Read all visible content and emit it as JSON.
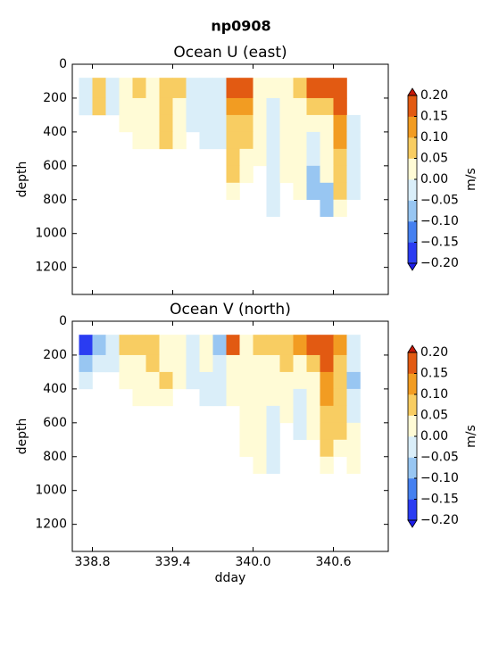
{
  "title": "np0908",
  "chart_data": [
    {
      "type": "heatmap",
      "title": "Ocean U (east)",
      "ylabel": "depth",
      "colorbar_label": "m/s",
      "xlim": [
        338.65,
        341.01
      ],
      "xticks": [
        338.8,
        339.4,
        340,
        340.6
      ],
      "ylim": [
        1360,
        0
      ],
      "yticks": [
        0,
        200,
        400,
        600,
        800,
        1000,
        1200
      ],
      "x_edges": [
        338.7,
        338.8,
        338.9,
        339.0,
        339.1,
        339.2,
        339.3,
        339.4,
        339.5,
        339.6,
        339.7,
        339.8,
        339.9,
        340.0,
        340.1,
        340.2,
        340.3,
        340.4,
        340.5,
        340.6,
        340.7,
        340.8
      ],
      "y_edges": [
        80,
        200,
        300,
        400,
        500,
        600,
        700,
        800,
        900
      ],
      "z": [
        [
          -0.03,
          0.08,
          -0.02,
          0.03,
          0.06,
          0.04,
          0.07,
          0.06,
          -0.04,
          -0.03,
          -0.02,
          0.18,
          0.17,
          0.03,
          0.02,
          0.04,
          0.07,
          0.17,
          0.18,
          0.2,
          null
        ],
        [
          -0.04,
          0.06,
          -0.01,
          0.02,
          0.05,
          0.03,
          0.06,
          0.04,
          -0.03,
          -0.04,
          -0.03,
          0.12,
          0.11,
          0.02,
          -0.03,
          0.03,
          0.05,
          0.06,
          0.07,
          0.16,
          null
        ],
        [
          null,
          null,
          null,
          0.01,
          0.03,
          0.02,
          0.07,
          0.03,
          -0.02,
          -0.03,
          -0.02,
          0.08,
          0.07,
          0.01,
          -0.04,
          0.02,
          0.04,
          0.03,
          0.05,
          0.13,
          -0.03
        ],
        [
          null,
          null,
          null,
          null,
          0.02,
          0.01,
          0.06,
          0.02,
          null,
          -0.02,
          -0.01,
          0.07,
          0.06,
          0.02,
          -0.04,
          0.03,
          0.04,
          -0.03,
          0.04,
          0.11,
          -0.04
        ],
        [
          null,
          null,
          null,
          null,
          null,
          null,
          null,
          null,
          null,
          null,
          null,
          0.07,
          0.05,
          0.01,
          -0.03,
          0.02,
          0.03,
          -0.04,
          0.03,
          0.09,
          -0.03
        ],
        [
          null,
          null,
          null,
          null,
          null,
          null,
          null,
          null,
          null,
          null,
          null,
          0.06,
          0.03,
          null,
          -0.04,
          0.01,
          0.02,
          -0.06,
          0.02,
          0.08,
          -0.02
        ],
        [
          null,
          null,
          null,
          null,
          null,
          null,
          null,
          null,
          null,
          null,
          null,
          0.04,
          null,
          null,
          -0.03,
          null,
          0.01,
          -0.07,
          -0.06,
          0.06,
          -0.01
        ],
        [
          null,
          null,
          null,
          null,
          null,
          null,
          null,
          null,
          null,
          null,
          null,
          null,
          null,
          null,
          -0.02,
          null,
          null,
          null,
          -0.05,
          0.04,
          null
        ]
      ],
      "levels": [
        -0.2,
        -0.15,
        -0.1,
        -0.05,
        0,
        0.05,
        0.1,
        0.15,
        0.2
      ],
      "level_labels": [
        {
          "value": -0.2,
          "label": "−0.20"
        },
        {
          "value": -0.15,
          "label": "−0.15"
        },
        {
          "value": -0.1,
          "label": "−0.10"
        },
        {
          "value": -0.05,
          "label": "−0.05"
        },
        {
          "value": 0,
          "label": "0.00"
        },
        {
          "value": 0.05,
          "label": "0.05"
        },
        {
          "value": 0.1,
          "label": "0.10"
        },
        {
          "value": 0.15,
          "label": "0.15"
        },
        {
          "value": 0.2,
          "label": "0.20"
        }
      ],
      "colors": [
        "#2a3cf2",
        "#4580f0",
        "#98c6f2",
        "#daeef9",
        "#fffbd6",
        "#f8cd62",
        "#f29c22",
        "#e25a12"
      ],
      "under_color": "#1c1ce8",
      "over_color": "#c41808"
    },
    {
      "type": "heatmap",
      "title": "Ocean V (north)",
      "xlabel": "dday",
      "ylabel": "depth",
      "colorbar_label": "m/s",
      "xlim": [
        338.65,
        341.01
      ],
      "xticks": [
        338.8,
        339.4,
        {
          "value": 340,
          "label": "340.0"
        },
        340.6
      ],
      "ylim": [
        1360,
        0
      ],
      "yticks": [
        0,
        200,
        400,
        600,
        800,
        1000,
        1200
      ],
      "x_edges": [
        338.7,
        338.8,
        338.9,
        339.0,
        339.1,
        339.2,
        339.3,
        339.4,
        339.5,
        339.6,
        339.7,
        339.8,
        339.9,
        340.0,
        340.1,
        340.2,
        340.3,
        340.4,
        340.5,
        340.6,
        340.7,
        340.8
      ],
      "y_edges": [
        80,
        200,
        300,
        400,
        500,
        600,
        700,
        800,
        900
      ],
      "z": [
        [
          -0.17,
          -0.07,
          -0.03,
          0.07,
          0.06,
          0.08,
          0.05,
          0.04,
          -0.02,
          0.02,
          -0.06,
          0.17,
          0.03,
          0.06,
          0.08,
          0.09,
          0.11,
          0.16,
          0.19,
          0.12,
          -0.03
        ],
        [
          -0.08,
          -0.04,
          -0.02,
          0.04,
          0.05,
          0.06,
          0.04,
          0.03,
          -0.03,
          0.01,
          -0.04,
          0.04,
          0.02,
          0.04,
          0.05,
          0.06,
          0.04,
          0.06,
          0.17,
          0.08,
          -0.04
        ],
        [
          -0.04,
          null,
          null,
          0.03,
          0.04,
          0.05,
          0.06,
          0.02,
          -0.02,
          -0.01,
          -0.03,
          0.01,
          0.03,
          0.04,
          0.04,
          0.03,
          0.02,
          0.03,
          0.14,
          0.07,
          -0.06
        ],
        [
          null,
          null,
          null,
          null,
          0.03,
          0.04,
          0.05,
          null,
          null,
          -0.02,
          -0.02,
          0.02,
          0.04,
          0.05,
          0.03,
          0.02,
          -0.02,
          0.03,
          0.12,
          0.06,
          -0.03
        ],
        [
          null,
          null,
          null,
          null,
          null,
          null,
          null,
          null,
          null,
          null,
          null,
          null,
          0.04,
          0.05,
          -0.03,
          0.01,
          -0.03,
          0.02,
          0.09,
          0.07,
          -0.02
        ],
        [
          null,
          null,
          null,
          null,
          null,
          null,
          null,
          null,
          null,
          null,
          null,
          null,
          0.03,
          0.04,
          -0.04,
          null,
          -0.02,
          0.01,
          0.08,
          0.06,
          0.02
        ],
        [
          null,
          null,
          null,
          null,
          null,
          null,
          null,
          null,
          null,
          null,
          null,
          null,
          0.02,
          0.03,
          -0.03,
          null,
          null,
          null,
          0.06,
          0.05,
          0.03
        ],
        [
          null,
          null,
          null,
          null,
          null,
          null,
          null,
          null,
          null,
          null,
          null,
          null,
          null,
          0.02,
          -0.02,
          null,
          null,
          null,
          0.04,
          null,
          0.02
        ]
      ],
      "levels": [
        -0.2,
        -0.15,
        -0.1,
        -0.05,
        0,
        0.05,
        0.1,
        0.15,
        0.2
      ],
      "level_labels": [
        {
          "value": -0.2,
          "label": "−0.20"
        },
        {
          "value": -0.15,
          "label": "−0.15"
        },
        {
          "value": -0.1,
          "label": "−0.10"
        },
        {
          "value": -0.05,
          "label": "−0.05"
        },
        {
          "value": 0,
          "label": "0.00"
        },
        {
          "value": 0.05,
          "label": "0.05"
        },
        {
          "value": 0.1,
          "label": "0.10"
        },
        {
          "value": 0.15,
          "label": "0.15"
        },
        {
          "value": 0.2,
          "label": "0.20"
        }
      ],
      "colors": [
        "#2a3cf2",
        "#4580f0",
        "#98c6f2",
        "#daeef9",
        "#fffbd6",
        "#f8cd62",
        "#f29c22",
        "#e25a12"
      ],
      "under_color": "#1c1ce8",
      "over_color": "#c41808"
    }
  ]
}
